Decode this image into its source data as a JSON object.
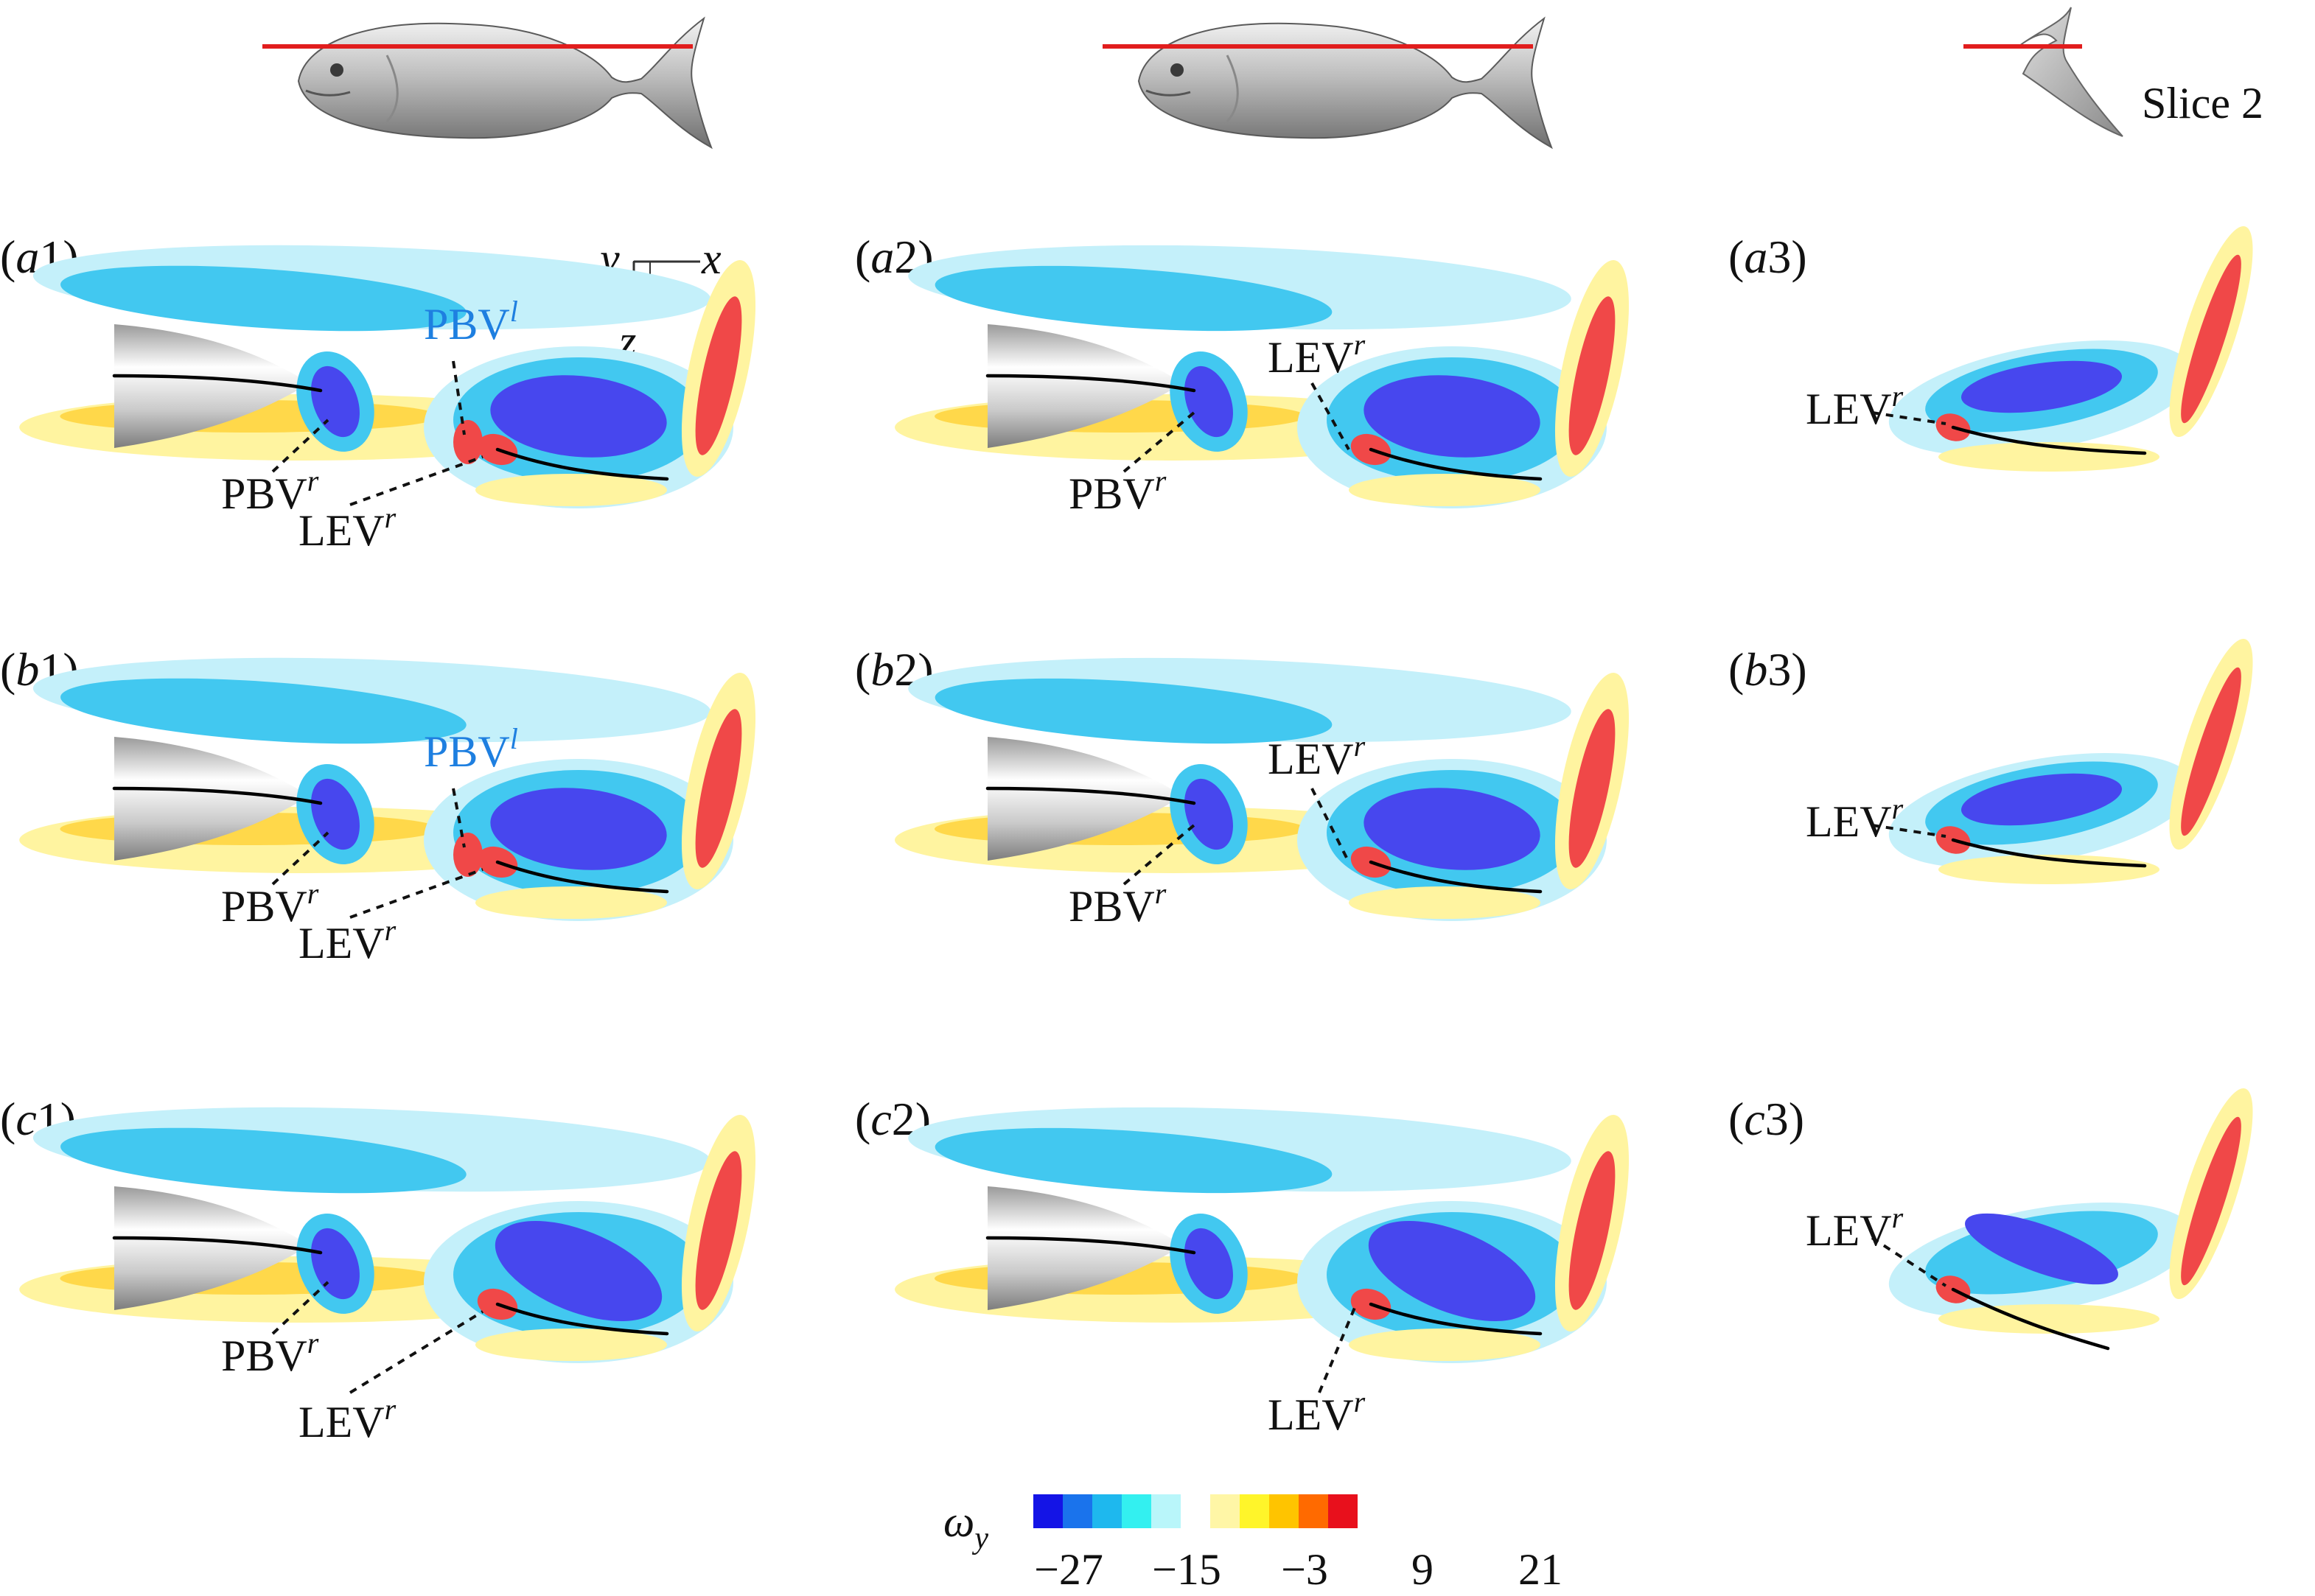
{
  "header": {
    "slice_label": "Slice 2"
  },
  "axes_glyph": {
    "y": "y",
    "x": "x",
    "z": "z"
  },
  "labels": {
    "pbv": "PBV",
    "lev": "LEV",
    "sup_r": "r",
    "sup_l": "l"
  },
  "panels": [
    {
      "id": "a1",
      "pre": "(",
      "letter": "a",
      "num": "1",
      "post": ")"
    },
    {
      "id": "a2",
      "pre": "(",
      "letter": "a",
      "num": "2",
      "post": ")"
    },
    {
      "id": "a3",
      "pre": "(",
      "letter": "a",
      "num": "3",
      "post": ")"
    },
    {
      "id": "b1",
      "pre": "(",
      "letter": "b",
      "num": "1",
      "post": ")"
    },
    {
      "id": "b2",
      "pre": "(",
      "letter": "b",
      "num": "2",
      "post": ")"
    },
    {
      "id": "b3",
      "pre": "(",
      "letter": "b",
      "num": "3",
      "post": ")"
    },
    {
      "id": "c1",
      "pre": "(",
      "letter": "c",
      "num": "1",
      "post": ")"
    },
    {
      "id": "c2",
      "pre": "(",
      "letter": "c",
      "num": "2",
      "post": ")"
    },
    {
      "id": "c3",
      "pre": "(",
      "letter": "c",
      "num": "3",
      "post": ")"
    }
  ],
  "colorbar": {
    "symbol": "ω",
    "subscript": "y",
    "ticks": [
      "−27",
      "−15",
      "−3",
      "9",
      "21"
    ],
    "colors": [
      "#1414e6",
      "#1a73ec",
      "#1eb8ee",
      "#33f0f0",
      "#b9f6fa",
      "#ffffff",
      "#fff6a6",
      "#fff52a",
      "#ffc400",
      "#ff6a00",
      "#e8101c"
    ]
  },
  "colors": {
    "neg_strong": "#4747ee",
    "neg_mid": "#42c8f0",
    "neg_weak": "#c4f0fa",
    "pos_weak": "#fff4a0",
    "pos_mid": "#ffd84a",
    "pos_strong": "#f04848",
    "label_blue": "#1e7fe0",
    "cut_line": "#e11d1d"
  }
}
